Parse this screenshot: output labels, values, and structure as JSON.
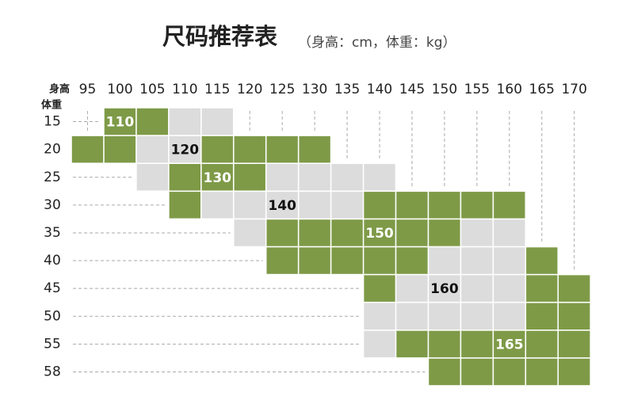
{
  "header": {
    "title": "尺码推荐表",
    "subtitle": "（身高：cm，体重：kg）",
    "height_label": "身高",
    "weight_label": "体重"
  },
  "palette": {
    "G": "#7e9a47",
    "g": "#dcdcdc"
  },
  "heights": [
    "95",
    "100",
    "105",
    "110",
    "115",
    "120",
    "125",
    "130",
    "135",
    "140",
    "145",
    "150",
    "155",
    "160",
    "165",
    "170"
  ],
  "rows": [
    {
      "weight": "15",
      "cells": [
        null,
        {
          "fill": "G",
          "text": "110"
        },
        {
          "fill": "G"
        },
        {
          "fill": "g"
        },
        {
          "fill": "g"
        },
        null,
        null,
        null,
        null,
        null,
        null,
        null,
        null,
        null,
        null,
        null
      ]
    },
    {
      "weight": "20",
      "cells": [
        {
          "fill": "G"
        },
        {
          "fill": "G"
        },
        {
          "fill": "g"
        },
        {
          "fill": "g",
          "text": "120"
        },
        {
          "fill": "G"
        },
        {
          "fill": "G"
        },
        {
          "fill": "G"
        },
        {
          "fill": "G"
        },
        null,
        null,
        null,
        null,
        null,
        null,
        null,
        null
      ]
    },
    {
      "weight": "25",
      "cells": [
        null,
        null,
        {
          "fill": "g"
        },
        {
          "fill": "G"
        },
        {
          "fill": "G",
          "text": "130"
        },
        {
          "fill": "G"
        },
        {
          "fill": "g"
        },
        {
          "fill": "g"
        },
        {
          "fill": "g"
        },
        {
          "fill": "g"
        },
        null,
        null,
        null,
        null,
        null,
        null
      ]
    },
    {
      "weight": "30",
      "cells": [
        null,
        null,
        null,
        {
          "fill": "G"
        },
        {
          "fill": "g"
        },
        {
          "fill": "g"
        },
        {
          "fill": "g",
          "text": "140"
        },
        {
          "fill": "g"
        },
        {
          "fill": "g"
        },
        {
          "fill": "G"
        },
        {
          "fill": "G"
        },
        {
          "fill": "G"
        },
        {
          "fill": "G"
        },
        {
          "fill": "G"
        },
        null,
        null
      ]
    },
    {
      "weight": "35",
      "cells": [
        null,
        null,
        null,
        null,
        null,
        {
          "fill": "g"
        },
        {
          "fill": "G"
        },
        {
          "fill": "G"
        },
        {
          "fill": "G"
        },
        {
          "fill": "G",
          "text": "150"
        },
        {
          "fill": "G"
        },
        {
          "fill": "G"
        },
        {
          "fill": "g"
        },
        {
          "fill": "g"
        },
        null,
        null
      ]
    },
    {
      "weight": "40",
      "cells": [
        null,
        null,
        null,
        null,
        null,
        null,
        {
          "fill": "G"
        },
        {
          "fill": "G"
        },
        {
          "fill": "G"
        },
        {
          "fill": "G"
        },
        {
          "fill": "G"
        },
        {
          "fill": "g"
        },
        {
          "fill": "g"
        },
        {
          "fill": "g"
        },
        {
          "fill": "G"
        },
        null
      ]
    },
    {
      "weight": "45",
      "cells": [
        null,
        null,
        null,
        null,
        null,
        null,
        null,
        null,
        null,
        {
          "fill": "G"
        },
        {
          "fill": "g"
        },
        {
          "fill": "g",
          "text": "160"
        },
        {
          "fill": "g"
        },
        {
          "fill": "g"
        },
        {
          "fill": "G"
        },
        {
          "fill": "G"
        }
      ]
    },
    {
      "weight": "50",
      "cells": [
        null,
        null,
        null,
        null,
        null,
        null,
        null,
        null,
        null,
        {
          "fill": "g"
        },
        {
          "fill": "g"
        },
        {
          "fill": "g"
        },
        {
          "fill": "g"
        },
        {
          "fill": "g"
        },
        {
          "fill": "G"
        },
        {
          "fill": "G"
        }
      ]
    },
    {
      "weight": "55",
      "cells": [
        null,
        null,
        null,
        null,
        null,
        null,
        null,
        null,
        null,
        {
          "fill": "g"
        },
        {
          "fill": "G"
        },
        {
          "fill": "G"
        },
        {
          "fill": "G"
        },
        {
          "fill": "G",
          "text": "165"
        },
        {
          "fill": "G"
        },
        {
          "fill": "G"
        }
      ]
    },
    {
      "weight": "58",
      "cells": [
        null,
        null,
        null,
        null,
        null,
        null,
        null,
        null,
        null,
        null,
        null,
        {
          "fill": "G"
        },
        {
          "fill": "G"
        },
        {
          "fill": "G"
        },
        {
          "fill": "G"
        },
        {
          "fill": "G"
        }
      ]
    }
  ]
}
